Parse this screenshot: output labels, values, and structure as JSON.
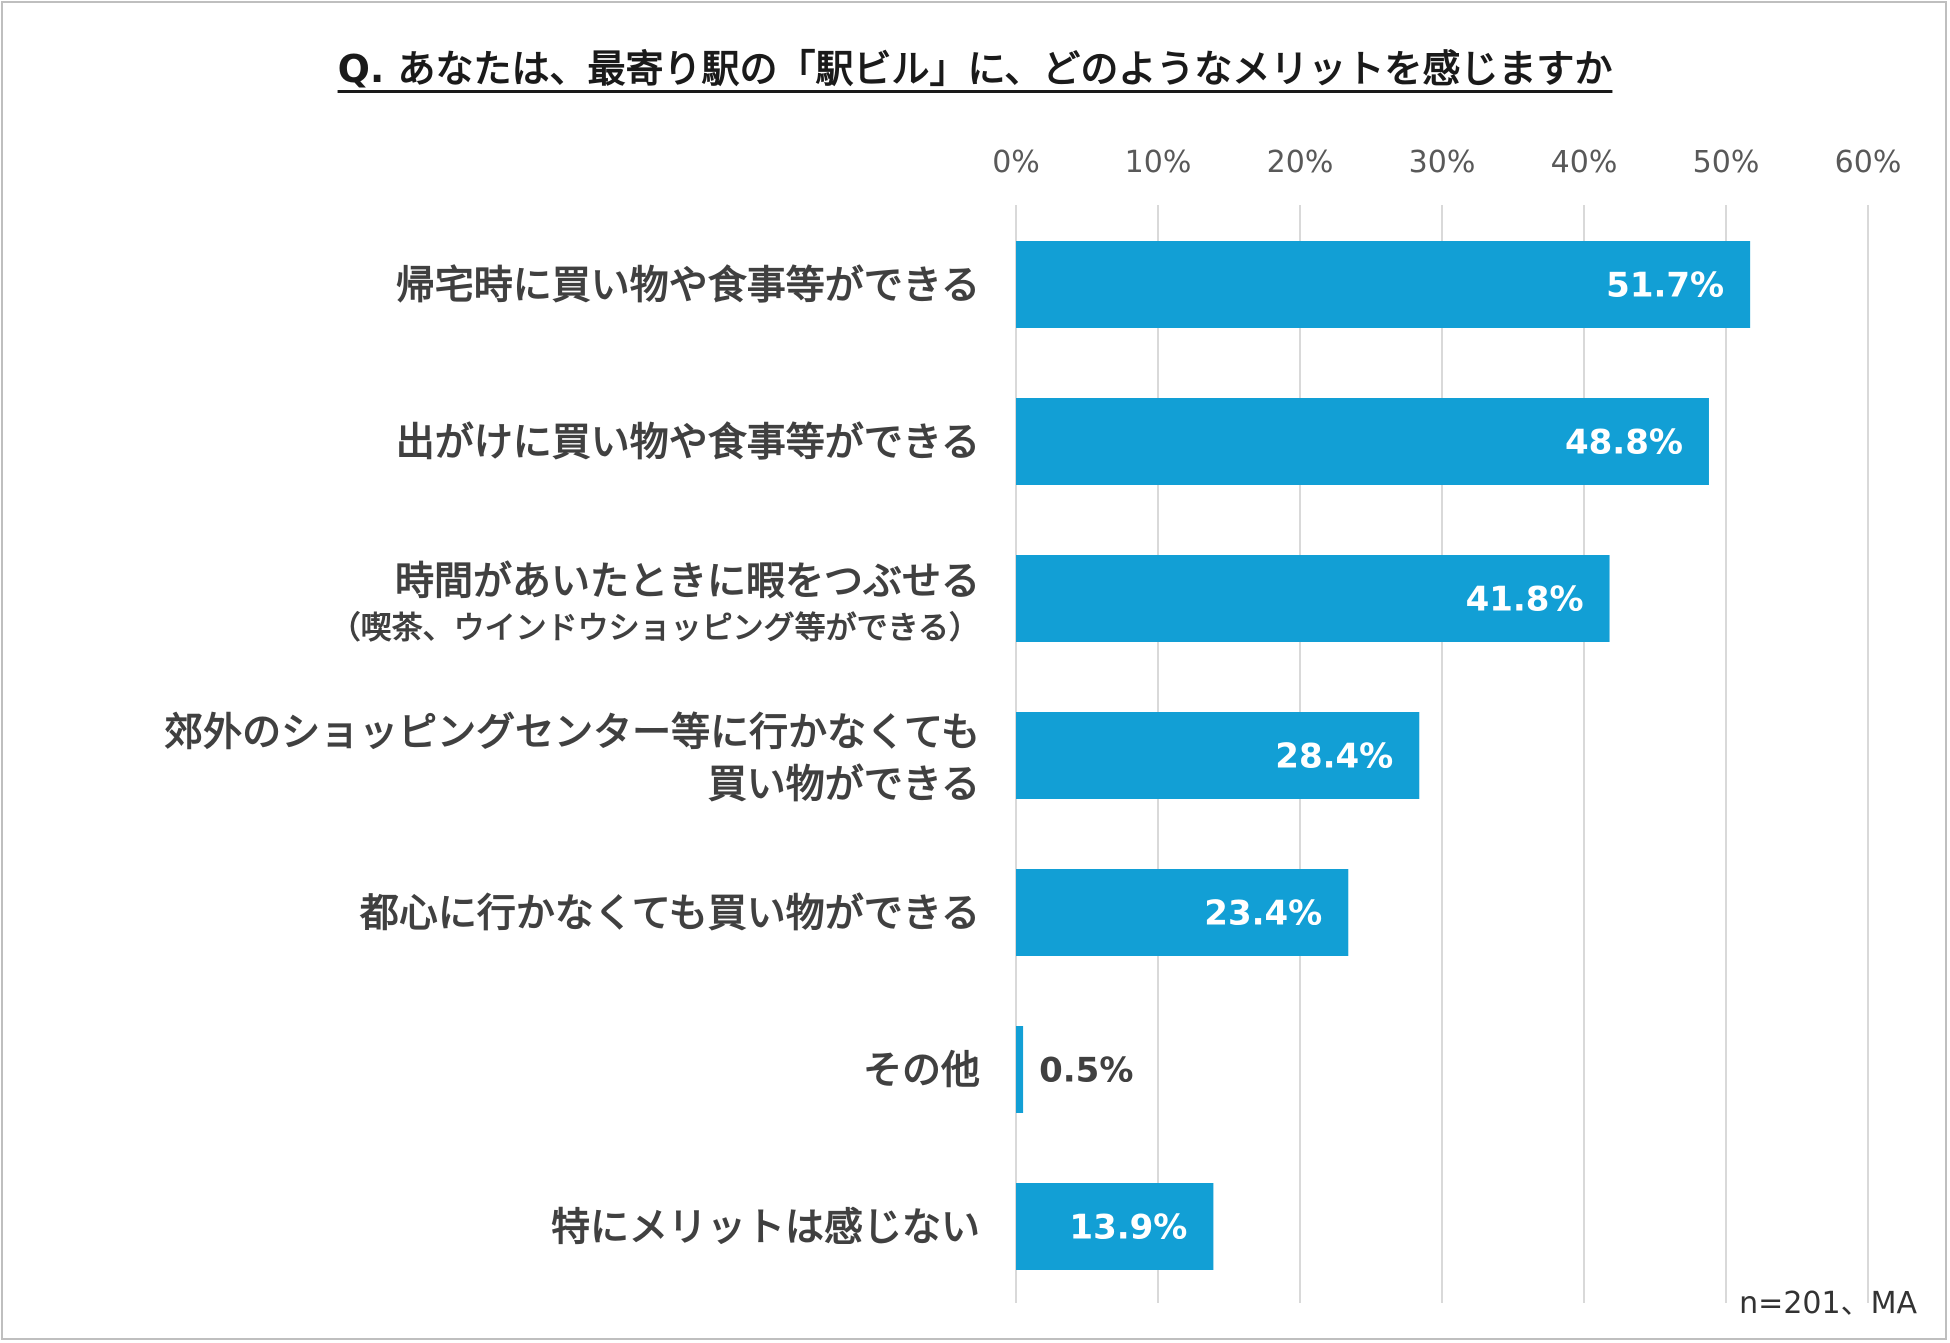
{
  "title": "Q. あなたは、最寄り駅の「駅ビル」に、どのようなメリットを感じますか",
  "note": "n=201、MA",
  "chart_data": {
    "type": "bar",
    "orientation": "horizontal",
    "title": "Q. あなたは、最寄り駅の「駅ビル」に、どのようなメリットを感じますか",
    "xlabel": "",
    "ylabel": "",
    "xlim": [
      0,
      60
    ],
    "ticks": [
      0,
      10,
      20,
      30,
      40,
      50,
      60
    ],
    "tick_labels": [
      "0%",
      "10%",
      "20%",
      "30%",
      "40%",
      "50%",
      "60%"
    ],
    "grid": true,
    "bar_color": "#129fd5",
    "categories": [
      {
        "lines": [
          "帰宅時に買い物や食事等ができる"
        ]
      },
      {
        "lines": [
          "出がけに買い物や食事等ができる"
        ]
      },
      {
        "lines": [
          "時間があいたときに暇をつぶせる"
        ],
        "sub": "（喫茶、ウインドウショッピング等ができる）"
      },
      {
        "lines": [
          "郊外のショッピングセンター等に行かなくても",
          "買い物ができる"
        ]
      },
      {
        "lines": [
          "都心に行かなくても買い物ができる"
        ]
      },
      {
        "lines": [
          "その他"
        ]
      },
      {
        "lines": [
          "特にメリットは感じない"
        ]
      }
    ],
    "values": [
      51.7,
      48.8,
      41.8,
      28.4,
      23.4,
      0.5,
      13.9
    ],
    "value_labels": [
      "51.7%",
      "48.8%",
      "41.8%",
      "28.4%",
      "23.4%",
      "0.5%",
      "13.9%"
    ]
  }
}
